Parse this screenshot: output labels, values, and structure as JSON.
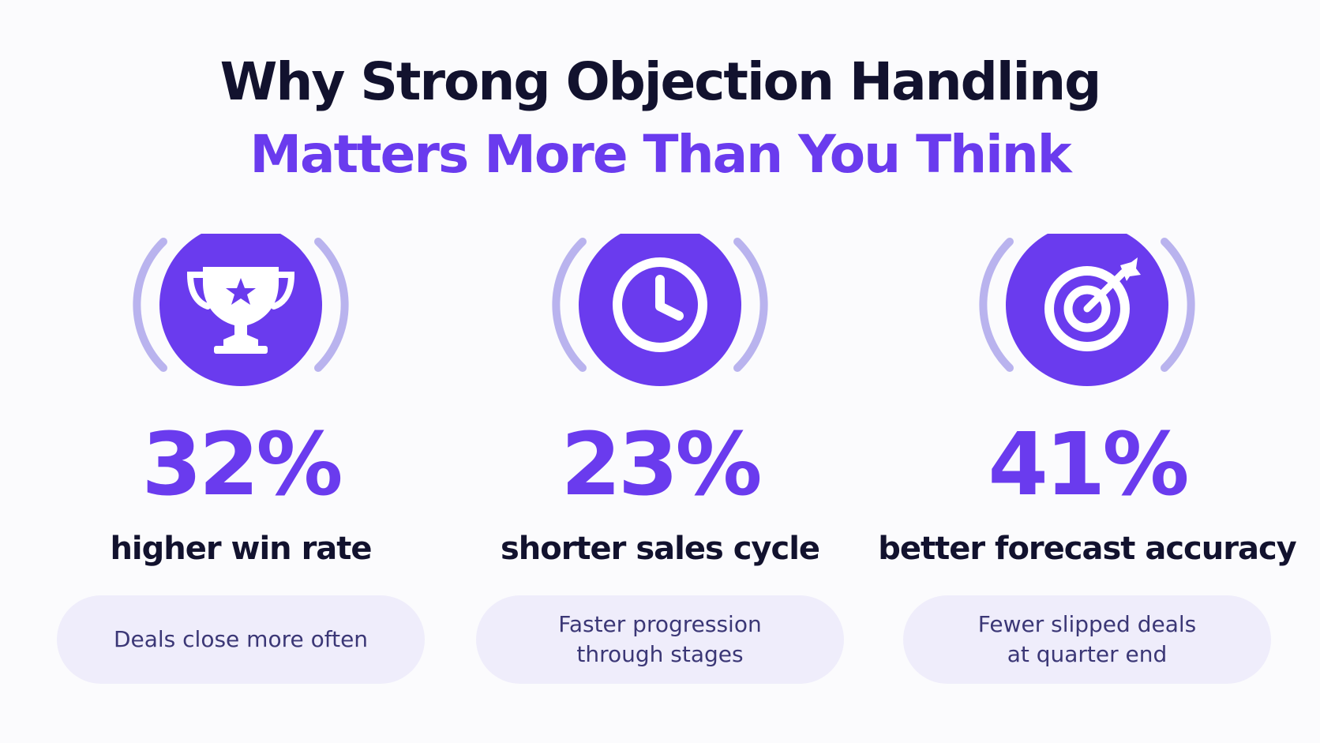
{
  "colors": {
    "dark": "#12122e",
    "accent": "#6a3bee",
    "accent_soft": "#b9b3ee",
    "pill_bg": "#efedfb",
    "pill_text": "#3b3776",
    "white": "#ffffff"
  },
  "headline": {
    "line1": "Why Strong Objection Handling",
    "line2": "Matters More Than You Think"
  },
  "stats": [
    {
      "icon": "trophy-icon",
      "value": "32%",
      "label": "higher win rate",
      "description": "Deals close more often"
    },
    {
      "icon": "clock-icon",
      "value": "23%",
      "label": "shorter sales cycle",
      "description": "Faster progression\nthrough stages"
    },
    {
      "icon": "target-icon",
      "value": "41%",
      "label": "better forecast accuracy",
      "description": "Fewer slipped deals\nat quarter end"
    }
  ]
}
